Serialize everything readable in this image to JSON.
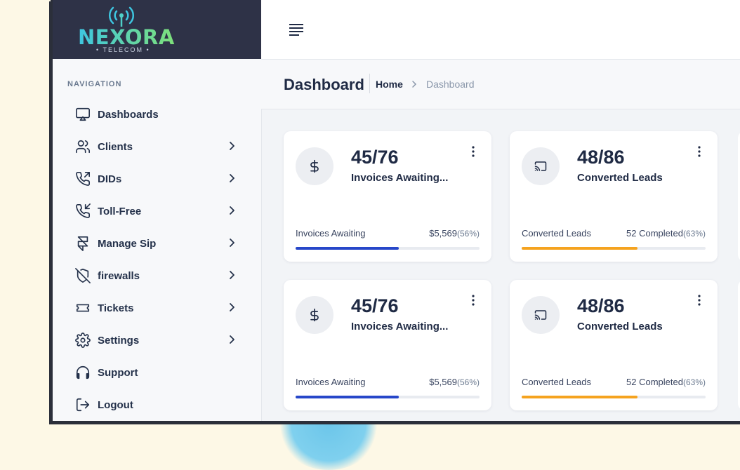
{
  "brand": {
    "name": "NEXORA",
    "tagline": "TELECOM"
  },
  "nav": {
    "heading": "NAVIGATION",
    "items": [
      {
        "label": "Dashboards",
        "icon": "monitor-icon",
        "has_children": false
      },
      {
        "label": "Clients",
        "icon": "users-icon",
        "has_children": true
      },
      {
        "label": "DIDs",
        "icon": "phone-outgoing-icon",
        "has_children": true
      },
      {
        "label": "Toll-Free",
        "icon": "phone-incoming-icon",
        "has_children": true
      },
      {
        "label": "Manage Sip",
        "icon": "framer-icon",
        "has_children": true
      },
      {
        "label": "firewalls",
        "icon": "shield-off-icon",
        "has_children": true
      },
      {
        "label": "Tickets",
        "icon": "ticket-icon",
        "has_children": true
      },
      {
        "label": "Settings",
        "icon": "gear-icon",
        "has_children": true
      },
      {
        "label": "Support",
        "icon": "headphones-icon",
        "has_children": false
      },
      {
        "label": "Logout",
        "icon": "logout-icon",
        "has_children": false
      }
    ]
  },
  "header": {
    "title": "Dashboard",
    "breadcrumb": {
      "home": "Home",
      "current": "Dashboard"
    }
  },
  "cards": [
    {
      "icon": "dollar-icon",
      "value": "45/76",
      "label": "Invoices Awaiting...",
      "footer_label": "Invoices Awaiting",
      "footer_value": "$5,569",
      "footer_pct": "(56%)",
      "progress": 0.56,
      "color": "#2747c9"
    },
    {
      "icon": "cast-icon",
      "value": "48/86",
      "label": "Converted Leads",
      "footer_label": "Converted Leads",
      "footer_value": "52 Completed",
      "footer_pct": "(63%)",
      "progress": 0.63,
      "color": "#f5a31f"
    },
    {
      "icon": "dollar-icon",
      "value": "45/76",
      "label": "Invoices Awaiting...",
      "footer_label": "Invoices Awaiting",
      "footer_value": "$5,569",
      "footer_pct": "(56%)",
      "progress": 0.56,
      "color": "#2747c9"
    },
    {
      "icon": "cast-icon",
      "value": "48/86",
      "label": "Converted Leads",
      "footer_label": "Converted Leads",
      "footer_value": "52 Completed",
      "footer_pct": "(63%)",
      "progress": 0.63,
      "color": "#f5a31f"
    }
  ]
}
